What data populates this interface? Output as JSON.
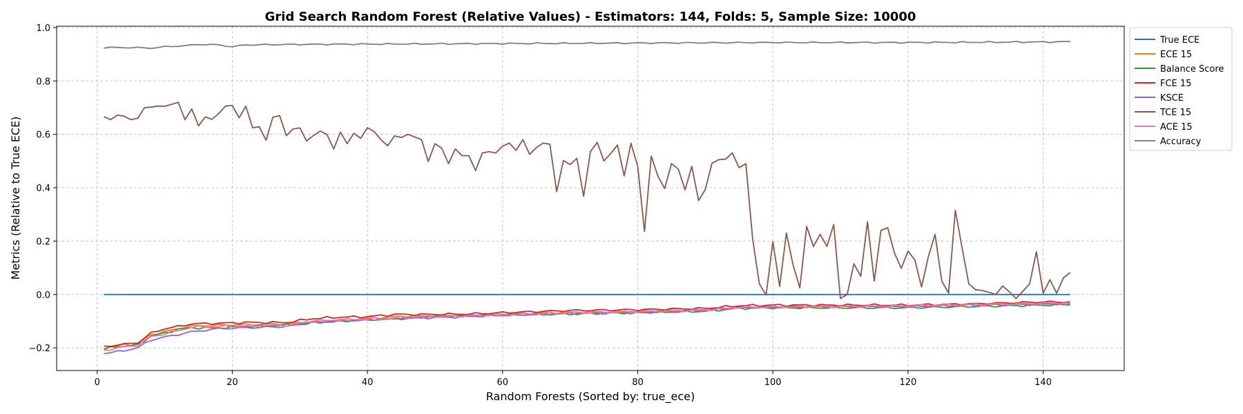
{
  "chart_data": {
    "type": "line",
    "title": "Grid Search Random Forest (Relative Values) - Estimators: 144, Folds: 5, Sample Size: 10000",
    "xlabel": "Random Forests (Sorted by: true_ece)",
    "ylabel": "Metrics (Relative to True ECE)",
    "xlim": [
      -6,
      152
    ],
    "ylim": [
      -0.285,
      1.005
    ],
    "xticks": [
      0,
      20,
      40,
      60,
      80,
      100,
      120,
      140
    ],
    "xtick_labels": [
      "0",
      "20",
      "40",
      "60",
      "80",
      "100",
      "120",
      "140"
    ],
    "yticks": [
      -0.2,
      0.0,
      0.2,
      0.4,
      0.6,
      0.8,
      1.0
    ],
    "ytick_labels": [
      "−0.2",
      "0.0",
      "0.2",
      "0.4",
      "0.6",
      "0.8",
      "1.0"
    ],
    "grid": true,
    "legend_position": "outside-right",
    "x_start": 1,
    "x_end": 144,
    "series": [
      {
        "name": "True ECE",
        "color": "#1f77b4",
        "anchors": [
          [
            1,
            0.0
          ],
          [
            144,
            0.0
          ]
        ]
      },
      {
        "name": "ECE 15",
        "color": "#ff7f0e",
        "anchors": [
          [
            1,
            -0.2
          ],
          [
            3,
            -0.19
          ],
          [
            6,
            -0.185
          ],
          [
            8,
            -0.15
          ],
          [
            10,
            -0.14
          ],
          [
            12,
            -0.128
          ],
          [
            14,
            -0.118
          ],
          [
            18,
            -0.115
          ],
          [
            22,
            -0.113
          ],
          [
            28,
            -0.11
          ],
          [
            32,
            -0.1
          ],
          [
            36,
            -0.095
          ],
          [
            40,
            -0.09
          ],
          [
            44,
            -0.083
          ],
          [
            48,
            -0.08
          ],
          [
            55,
            -0.078
          ],
          [
            60,
            -0.073
          ],
          [
            70,
            -0.066
          ],
          [
            80,
            -0.064
          ],
          [
            90,
            -0.057
          ],
          [
            95,
            -0.048
          ],
          [
            100,
            -0.045
          ],
          [
            110,
            -0.044
          ],
          [
            120,
            -0.042
          ],
          [
            130,
            -0.038
          ],
          [
            140,
            -0.033
          ],
          [
            144,
            -0.032
          ]
        ]
      },
      {
        "name": "Balance Score",
        "color": "#2ca02c",
        "anchors": [
          [
            1,
            -0.205
          ],
          [
            3,
            -0.195
          ],
          [
            6,
            -0.19
          ],
          [
            8,
            -0.155
          ],
          [
            10,
            -0.145
          ],
          [
            12,
            -0.13
          ],
          [
            14,
            -0.125
          ],
          [
            18,
            -0.125
          ],
          [
            22,
            -0.12
          ],
          [
            28,
            -0.115
          ],
          [
            32,
            -0.105
          ],
          [
            36,
            -0.1
          ],
          [
            40,
            -0.095
          ],
          [
            44,
            -0.09
          ],
          [
            48,
            -0.085
          ],
          [
            55,
            -0.08
          ],
          [
            60,
            -0.077
          ],
          [
            70,
            -0.072
          ],
          [
            80,
            -0.068
          ],
          [
            90,
            -0.063
          ],
          [
            95,
            -0.052
          ],
          [
            100,
            -0.05
          ],
          [
            110,
            -0.05
          ],
          [
            120,
            -0.05
          ],
          [
            130,
            -0.045
          ],
          [
            140,
            -0.04
          ],
          [
            144,
            -0.038
          ]
        ]
      },
      {
        "name": "FCE 15",
        "color": "#d62728",
        "anchors": [
          [
            1,
            -0.195
          ],
          [
            3,
            -0.19
          ],
          [
            6,
            -0.18
          ],
          [
            8,
            -0.145
          ],
          [
            10,
            -0.128
          ],
          [
            12,
            -0.12
          ],
          [
            14,
            -0.11
          ],
          [
            18,
            -0.108
          ],
          [
            22,
            -0.105
          ],
          [
            28,
            -0.105
          ],
          [
            32,
            -0.09
          ],
          [
            36,
            -0.085
          ],
          [
            40,
            -0.083
          ],
          [
            44,
            -0.075
          ],
          [
            48,
            -0.075
          ],
          [
            55,
            -0.073
          ],
          [
            60,
            -0.068
          ],
          [
            70,
            -0.06
          ],
          [
            80,
            -0.057
          ],
          [
            90,
            -0.052
          ],
          [
            95,
            -0.042
          ],
          [
            100,
            -0.04
          ],
          [
            110,
            -0.04
          ],
          [
            120,
            -0.04
          ],
          [
            130,
            -0.035
          ],
          [
            140,
            -0.028
          ],
          [
            144,
            -0.028
          ]
        ]
      },
      {
        "name": "KSCE",
        "color": "#9467bd",
        "anchors": [
          [
            1,
            -0.22
          ],
          [
            3,
            -0.215
          ],
          [
            6,
            -0.2
          ],
          [
            8,
            -0.17
          ],
          [
            10,
            -0.16
          ],
          [
            12,
            -0.15
          ],
          [
            14,
            -0.14
          ],
          [
            18,
            -0.128
          ],
          [
            22,
            -0.125
          ],
          [
            28,
            -0.12
          ],
          [
            32,
            -0.105
          ],
          [
            36,
            -0.1
          ],
          [
            40,
            -0.095
          ],
          [
            44,
            -0.092
          ],
          [
            48,
            -0.088
          ],
          [
            55,
            -0.083
          ],
          [
            60,
            -0.078
          ],
          [
            70,
            -0.072
          ],
          [
            80,
            -0.068
          ],
          [
            90,
            -0.06
          ],
          [
            95,
            -0.05
          ],
          [
            100,
            -0.048
          ],
          [
            110,
            -0.046
          ],
          [
            120,
            -0.045
          ],
          [
            130,
            -0.04
          ],
          [
            140,
            -0.036
          ],
          [
            144,
            -0.035
          ]
        ]
      },
      {
        "name": "TCE 15",
        "color": "#8c564b",
        "points": [
          0.666,
          0.655,
          0.672,
          0.668,
          0.655,
          0.66,
          0.7,
          0.702,
          0.706,
          0.705,
          0.712,
          0.72,
          0.655,
          0.695,
          0.632,
          0.665,
          0.656,
          0.678,
          0.706,
          0.708,
          0.662,
          0.705,
          0.625,
          0.628,
          0.578,
          0.664,
          0.67,
          0.595,
          0.62,
          0.624,
          0.575,
          0.595,
          0.612,
          0.6,
          0.545,
          0.608,
          0.565,
          0.604,
          0.585,
          0.625,
          0.61,
          0.58,
          0.557,
          0.594,
          0.588,
          0.6,
          0.59,
          0.58,
          0.498,
          0.565,
          0.548,
          0.49,
          0.545,
          0.52,
          0.52,
          0.464,
          0.53,
          0.535,
          0.53,
          0.556,
          0.567,
          0.54,
          0.58,
          0.525,
          0.55,
          0.567,
          0.563,
          0.385,
          0.502,
          0.487,
          0.51,
          0.368,
          0.535,
          0.57,
          0.5,
          0.528,
          0.56,
          0.444,
          0.566,
          0.48,
          0.236,
          0.518,
          0.443,
          0.397,
          0.49,
          0.47,
          0.392,
          0.48,
          0.352,
          0.393,
          0.492,
          0.505,
          0.507,
          0.53,
          0.475,
          0.49,
          0.21,
          0.04,
          -0.002,
          0.198,
          0.03,
          0.23,
          0.11,
          0.025,
          0.255,
          0.18,
          0.225,
          0.18,
          0.262,
          -0.015,
          0.0,
          0.115,
          0.068,
          0.272,
          0.05,
          0.24,
          0.25,
          0.155,
          0.098,
          0.162,
          0.13,
          0.028,
          0.14,
          0.225,
          0.05,
          0.005,
          0.315,
          0.175,
          0.04,
          0.018,
          0.015,
          0.008,
          0.0,
          0.032,
          0.01,
          -0.015,
          0.012,
          0.04,
          0.16,
          0.005,
          0.055,
          0.005,
          0.062,
          0.082
        ]
      },
      {
        "name": "ACE 15",
        "color": "#e377c2",
        "anchors": [
          [
            1,
            -0.21
          ],
          [
            3,
            -0.2
          ],
          [
            6,
            -0.19
          ],
          [
            8,
            -0.158
          ],
          [
            10,
            -0.148
          ],
          [
            12,
            -0.135
          ],
          [
            14,
            -0.122
          ],
          [
            18,
            -0.12
          ],
          [
            22,
            -0.118
          ],
          [
            28,
            -0.115
          ],
          [
            32,
            -0.1
          ],
          [
            36,
            -0.095
          ],
          [
            40,
            -0.092
          ],
          [
            44,
            -0.088
          ],
          [
            48,
            -0.083
          ],
          [
            55,
            -0.08
          ],
          [
            60,
            -0.075
          ],
          [
            70,
            -0.068
          ],
          [
            80,
            -0.065
          ],
          [
            90,
            -0.058
          ],
          [
            95,
            -0.048
          ],
          [
            100,
            -0.046
          ],
          [
            110,
            -0.045
          ],
          [
            120,
            -0.043
          ],
          [
            130,
            -0.038
          ],
          [
            140,
            -0.033
          ],
          [
            144,
            -0.032
          ]
        ]
      },
      {
        "name": "Accuracy",
        "color": "#7f7f7f",
        "anchors": [
          [
            1,
            0.925
          ],
          [
            5,
            0.925
          ],
          [
            8,
            0.923
          ],
          [
            10,
            0.928
          ],
          [
            13,
            0.932
          ],
          [
            15,
            0.937
          ],
          [
            18,
            0.935
          ],
          [
            20,
            0.928
          ],
          [
            22,
            0.935
          ],
          [
            30,
            0.937
          ],
          [
            40,
            0.938
          ],
          [
            50,
            0.939
          ],
          [
            60,
            0.94
          ],
          [
            70,
            0.941
          ],
          [
            80,
            0.942
          ],
          [
            90,
            0.943
          ],
          [
            100,
            0.944
          ],
          [
            110,
            0.944
          ],
          [
            120,
            0.944
          ],
          [
            130,
            0.945
          ],
          [
            140,
            0.946
          ],
          [
            144,
            0.947
          ]
        ]
      }
    ]
  }
}
